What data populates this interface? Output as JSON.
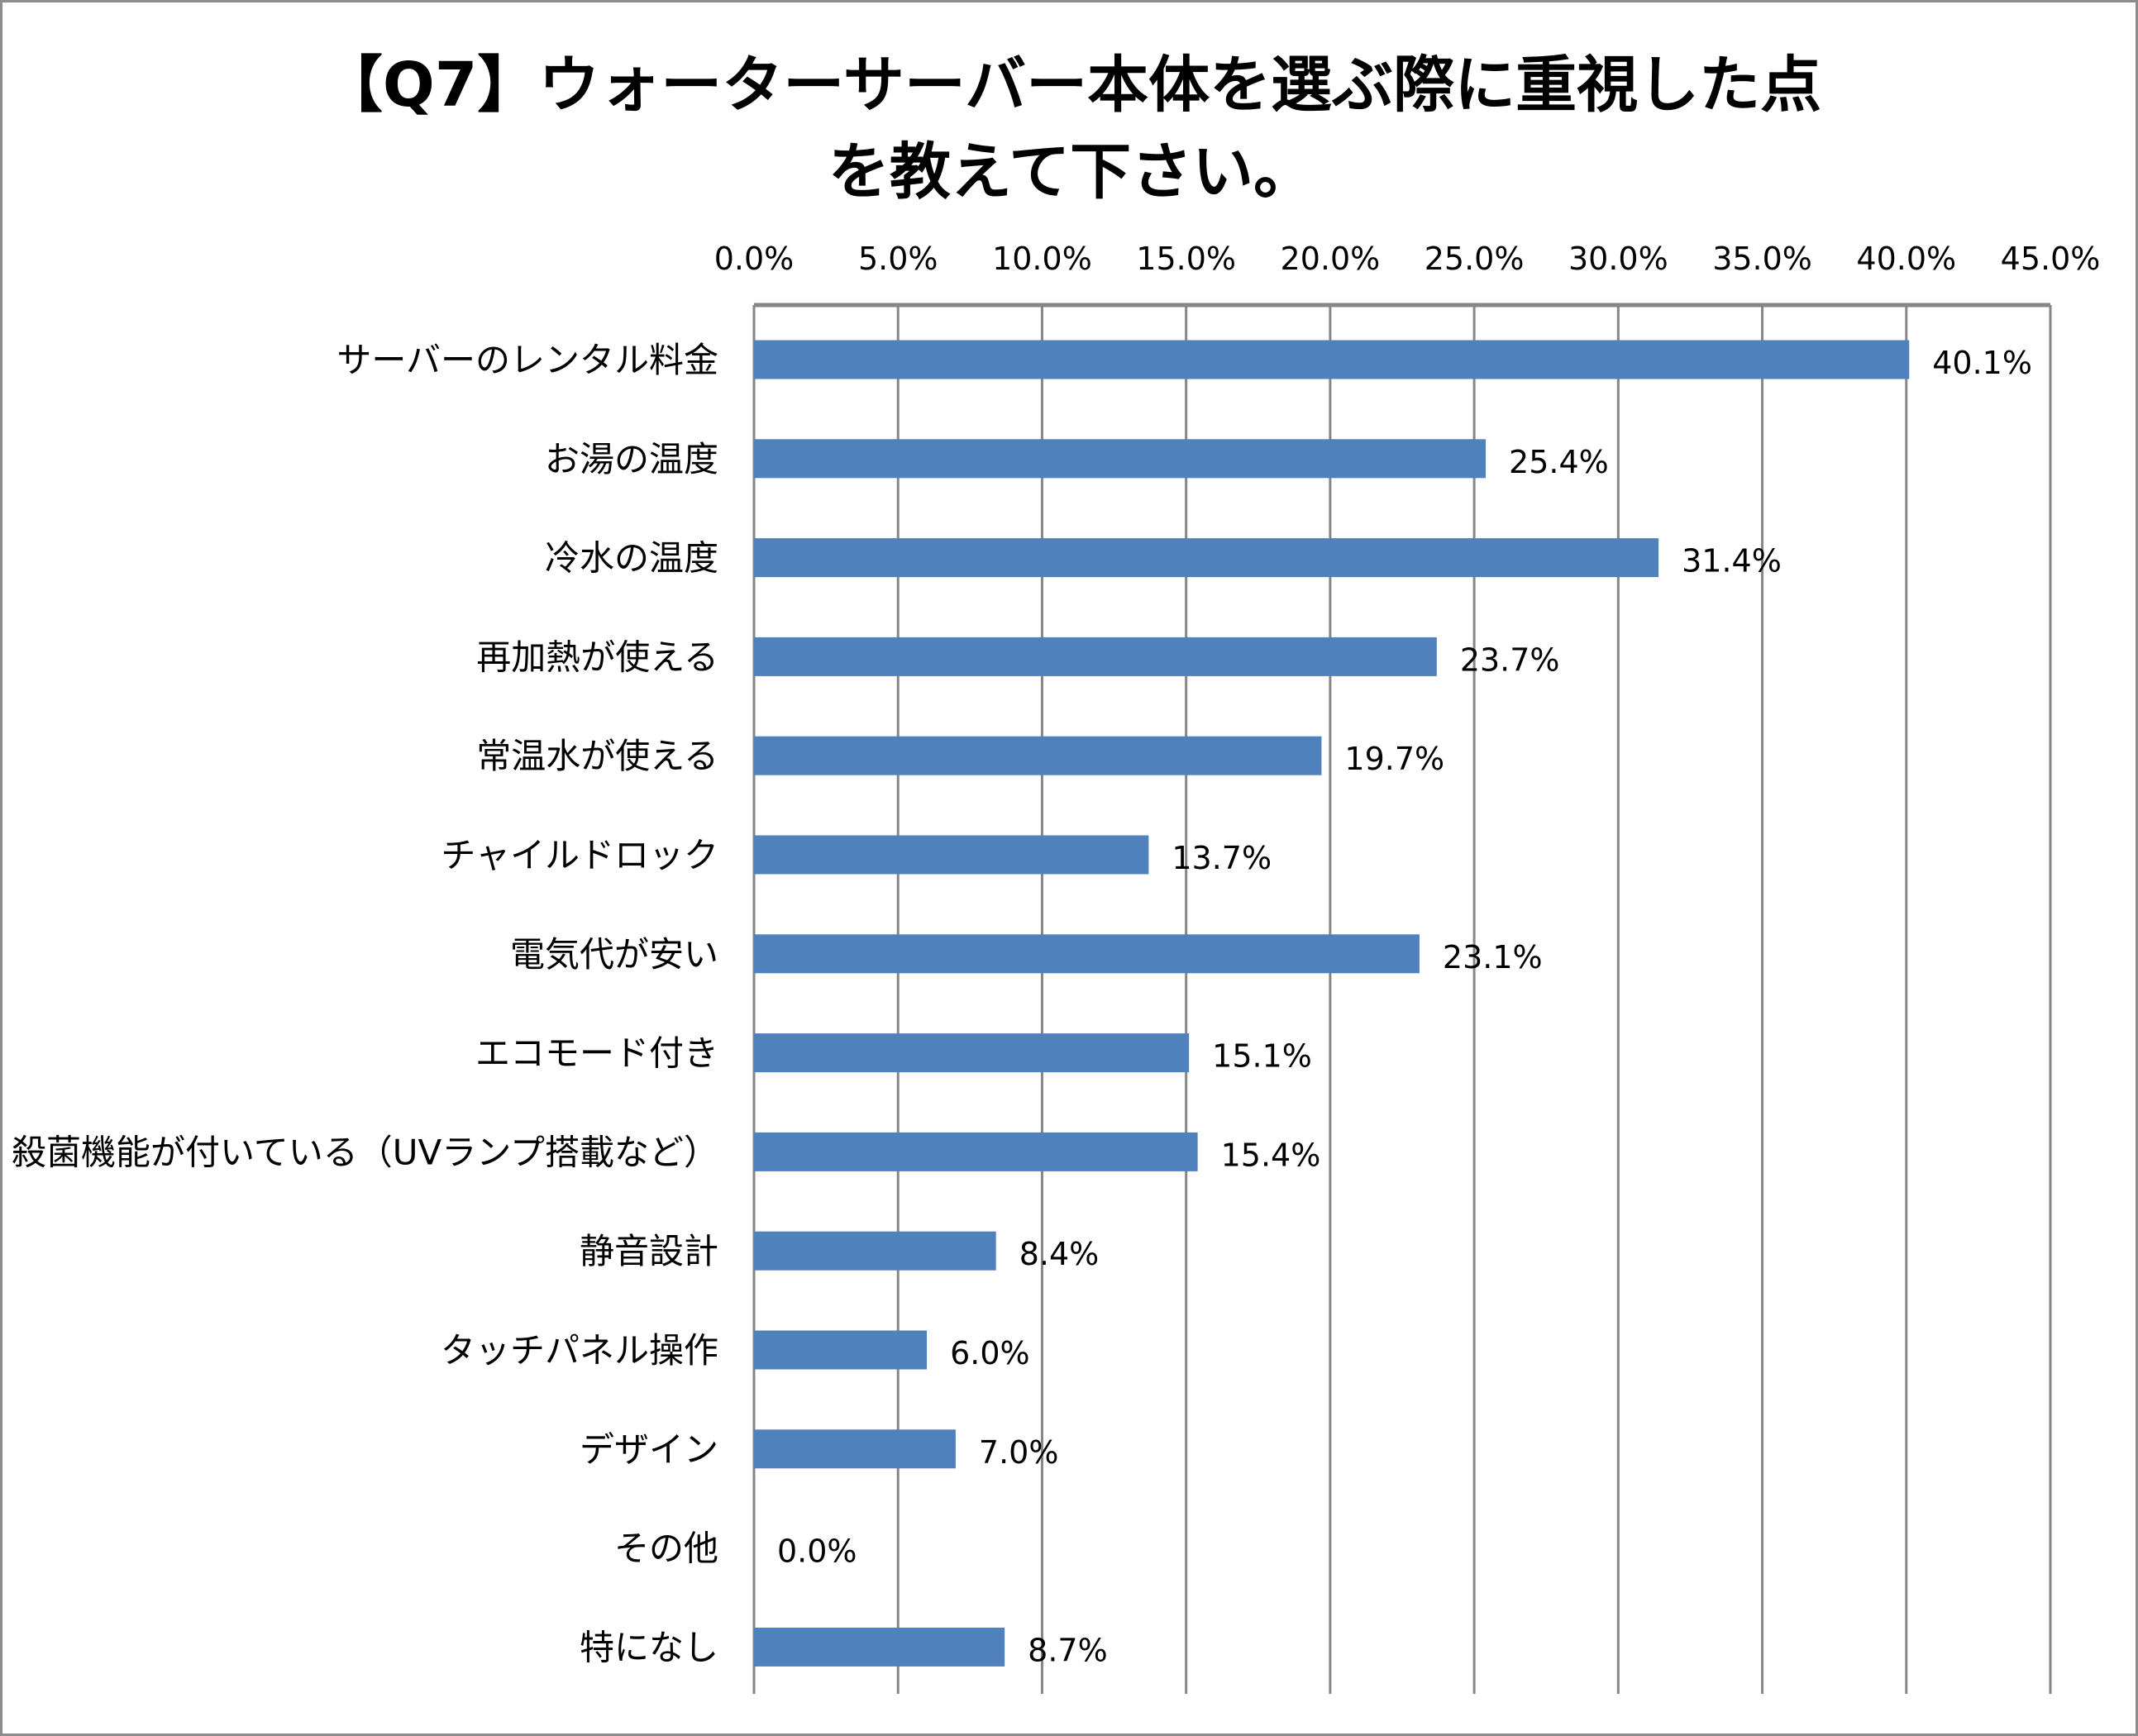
{
  "chart_data": {
    "type": "bar",
    "orientation": "horizontal",
    "title_lines": [
      "【Q7】ウォーターサーバー本体を選ぶ際に重視した点",
      "を教えて下さい。"
    ],
    "categories": [
      "サーバーのレンタル料金",
      "お湯の温度",
      "冷水の温度",
      "再加熱が使える",
      "常温水が使える",
      "チャイルドロック",
      "電気代が安い",
      "エコモード付き",
      "殺菌機能が付いている（UVランプ搭載など）",
      "静音設計",
      "タッチパネル操作",
      "デザイン",
      "その他",
      "特になし"
    ],
    "values": [
      40.1,
      25.4,
      31.4,
      23.7,
      19.7,
      13.7,
      23.1,
      15.1,
      15.4,
      8.4,
      6.0,
      7.0,
      0.0,
      8.7
    ],
    "data_labels": [
      "40.1%",
      "25.4%",
      "31.4%",
      "23.7%",
      "19.7%",
      "13.7%",
      "23.1%",
      "15.1%",
      "15.4%",
      "8.4%",
      "6.0%",
      "7.0%",
      "0.0%",
      "8.7%"
    ],
    "xlim": [
      0,
      45
    ],
    "ticks": [
      0,
      5,
      10,
      15,
      20,
      25,
      30,
      35,
      40,
      45
    ],
    "tick_labels": [
      "0.0%",
      "5.0%",
      "10.0%",
      "15.0%",
      "20.0%",
      "25.0%",
      "30.0%",
      "35.0%",
      "40.0%",
      "45.0%"
    ],
    "axis_position": "top",
    "grid": true,
    "bar_color": "#4f81bd",
    "grid_color": "#868686"
  }
}
